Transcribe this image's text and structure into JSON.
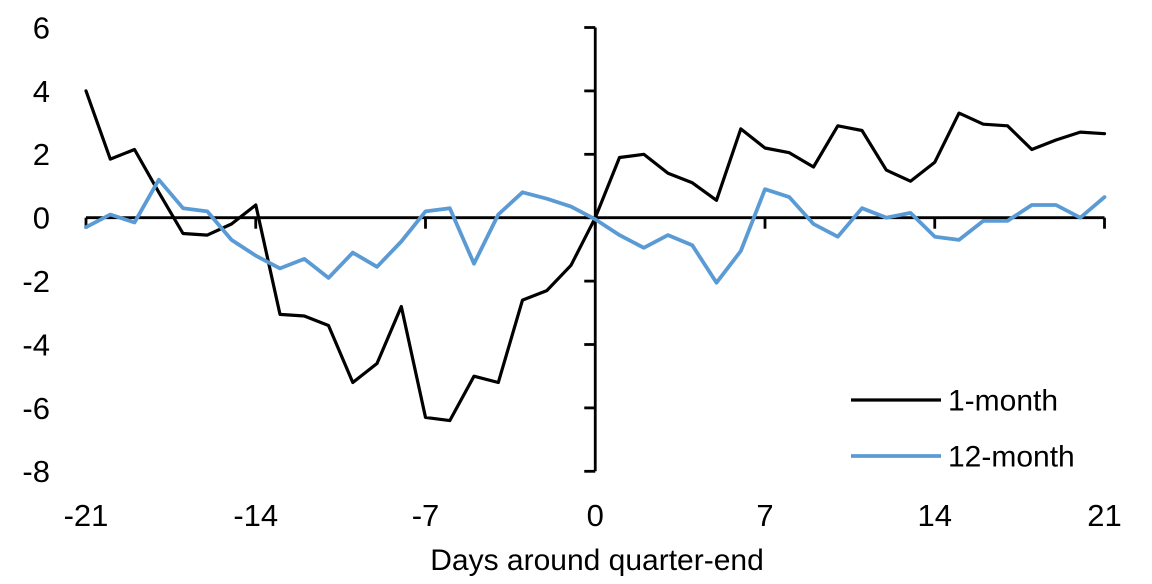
{
  "chart_data": {
    "type": "line",
    "title": "",
    "xlabel": "Days around quarter-end",
    "ylabel": "",
    "xlim": [
      -21,
      21
    ],
    "ylim": [
      -8,
      6
    ],
    "x_ticks": [
      -21,
      -14,
      -7,
      0,
      7,
      14,
      21
    ],
    "y_ticks": [
      6,
      4,
      2,
      0,
      -2,
      -4,
      -6,
      -8
    ],
    "grid": false,
    "legend_position": "lower-right",
    "axis_color": "#000000",
    "background_color": "#FFFFFF",
    "x": [
      -21,
      -20,
      -19,
      -18,
      -17,
      -16,
      -15,
      -14,
      -13,
      -12,
      -11,
      -10,
      -9,
      -8,
      -7,
      -6,
      -5,
      -4,
      -3,
      -2,
      -1,
      0,
      1,
      2,
      3,
      4,
      5,
      6,
      7,
      8,
      9,
      10,
      11,
      12,
      13,
      14,
      15,
      16,
      17,
      18,
      19,
      20,
      21
    ],
    "series": [
      {
        "name": "1-month",
        "color": "#000000",
        "values": [
          4.0,
          1.85,
          2.15,
          0.8,
          -0.5,
          -0.55,
          -0.2,
          0.4,
          -3.05,
          -3.1,
          -3.4,
          -5.2,
          -4.6,
          -2.8,
          -6.3,
          -6.4,
          -5.0,
          -5.2,
          -2.6,
          -2.3,
          -1.5,
          0.0,
          1.9,
          2.0,
          1.4,
          1.1,
          0.55,
          2.8,
          2.2,
          2.05,
          1.6,
          2.9,
          2.75,
          1.5,
          1.15,
          1.75,
          3.3,
          2.95,
          2.9,
          2.15,
          2.45,
          2.7,
          2.65
        ]
      },
      {
        "name": "12-month",
        "color": "#5B9BD5",
        "values": [
          -0.3,
          0.1,
          -0.15,
          1.2,
          0.3,
          0.2,
          -0.7,
          -1.2,
          -1.6,
          -1.3,
          -1.9,
          -1.1,
          -1.55,
          -0.75,
          0.2,
          0.3,
          -1.45,
          0.1,
          0.8,
          0.6,
          0.35,
          -0.05,
          -0.55,
          -0.95,
          -0.55,
          -0.87,
          -2.05,
          -1.05,
          0.9,
          0.65,
          -0.2,
          -0.6,
          0.3,
          0.0,
          0.15,
          -0.6,
          -0.7,
          -0.1,
          -0.1,
          0.4,
          0.4,
          0.0,
          0.65
        ]
      }
    ]
  }
}
